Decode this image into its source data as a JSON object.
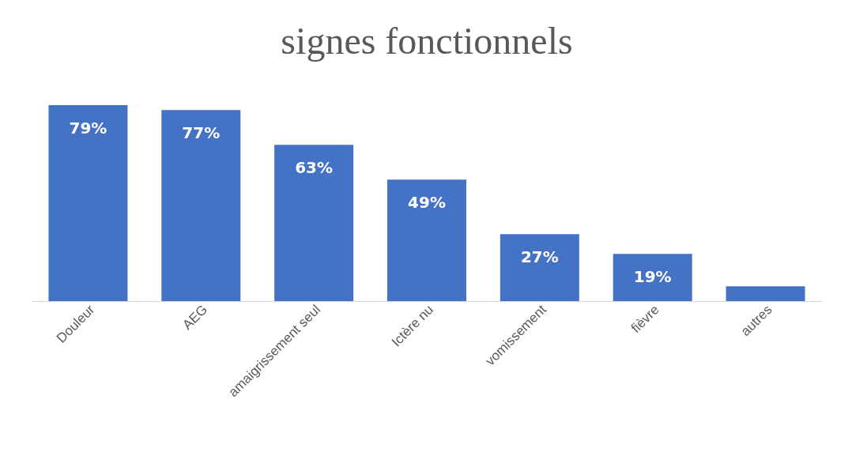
{
  "chart_data": {
    "type": "bar",
    "title": "signes fonctionnels",
    "categories": [
      "Douleur",
      "AEG",
      "amaigrissement seul",
      "Ictère nu",
      "vomissement",
      "fièvre",
      "autres"
    ],
    "values": [
      79,
      77,
      63,
      49,
      27,
      19,
      6
    ],
    "value_labels": [
      "79%",
      "77%",
      "63%",
      "49%",
      "27%",
      "19%",
      null
    ],
    "color": "#4472c4"
  }
}
